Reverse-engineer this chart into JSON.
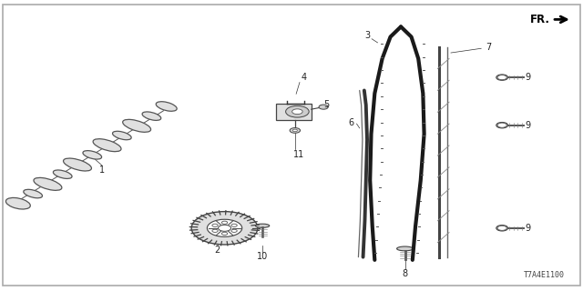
{
  "background_color": "#ffffff",
  "border_color": "#aaaaaa",
  "part_number": "T7A4E1100",
  "fr_label": "FR.",
  "line_color": "#333333",
  "text_color": "#222222",
  "shaft_color": "#555555",
  "part_fill": "#e8e8e8",
  "chain_color": "#1a1a1a",
  "rail_color": "#444444"
}
